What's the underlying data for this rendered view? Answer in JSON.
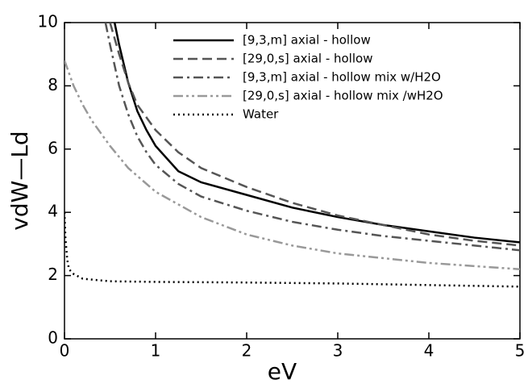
{
  "chart_data": {
    "type": "line",
    "xlabel": "eV",
    "ylabel": "vdW—Ld",
    "xlim": [
      0,
      5
    ],
    "ylim": [
      0,
      10
    ],
    "xticks": [
      0,
      1,
      2,
      3,
      4,
      5
    ],
    "yticks": [
      0,
      2,
      4,
      6,
      8,
      10
    ],
    "legend": "upper right",
    "series": [
      {
        "name": "[9,3,m] axial - hollow",
        "color": "#000000",
        "dash": "solid",
        "x": [
          0.55,
          0.6,
          0.7,
          0.8,
          0.9,
          1,
          1.25,
          1.5,
          2,
          2.5,
          3,
          3.5,
          4,
          4.5,
          5
        ],
        "values": [
          10,
          9.3,
          8.1,
          7.2,
          6.6,
          6.1,
          5.3,
          4.95,
          4.55,
          4.15,
          3.85,
          3.6,
          3.4,
          3.2,
          3.05
        ]
      },
      {
        "name": "[29,0,s] axial - hollow",
        "color": "#555555",
        "dash": "dashed",
        "x": [
          0.5,
          0.6,
          0.7,
          0.8,
          0.9,
          1,
          1.25,
          1.5,
          2,
          2.5,
          3,
          3.5,
          4,
          4.5,
          5
        ],
        "values": [
          10,
          9.0,
          8.1,
          7.4,
          7.0,
          6.6,
          5.9,
          5.4,
          4.8,
          4.3,
          3.9,
          3.6,
          3.3,
          3.1,
          2.95
        ]
      },
      {
        "name": "[9,3,m] axial - hollow mix w/H2O",
        "color": "#555555",
        "dash": "dashdot",
        "x": [
          0.45,
          0.5,
          0.6,
          0.7,
          0.8,
          0.9,
          1,
          1.25,
          1.5,
          2,
          2.5,
          3,
          3.5,
          4,
          4.5,
          5
        ],
        "values": [
          10,
          9.3,
          8.0,
          7.1,
          6.4,
          5.9,
          5.5,
          4.9,
          4.5,
          4.05,
          3.7,
          3.45,
          3.25,
          3.1,
          2.95,
          2.8
        ]
      },
      {
        "name": "[29,0,s] axial - hollow mix /wH2O",
        "color": "#999999",
        "dash": "dashdotdot",
        "x": [
          0,
          0.1,
          0.2,
          0.3,
          0.5,
          0.7,
          1,
          1.5,
          2,
          2.5,
          3,
          3.5,
          4,
          4.5,
          5
        ],
        "values": [
          8.8,
          8.0,
          7.4,
          6.9,
          6.1,
          5.4,
          4.65,
          3.85,
          3.3,
          2.95,
          2.7,
          2.55,
          2.4,
          2.3,
          2.2
        ]
      },
      {
        "name": "Water",
        "color": "#000000",
        "dash": "dotted",
        "x": [
          0,
          0.01,
          0.03,
          0.05,
          0.1,
          0.2,
          0.5,
          1,
          2,
          3,
          4,
          5
        ],
        "values": [
          4,
          3.2,
          2.5,
          2.2,
          2.05,
          1.9,
          1.82,
          1.8,
          1.78,
          1.75,
          1.7,
          1.65
        ]
      }
    ]
  }
}
